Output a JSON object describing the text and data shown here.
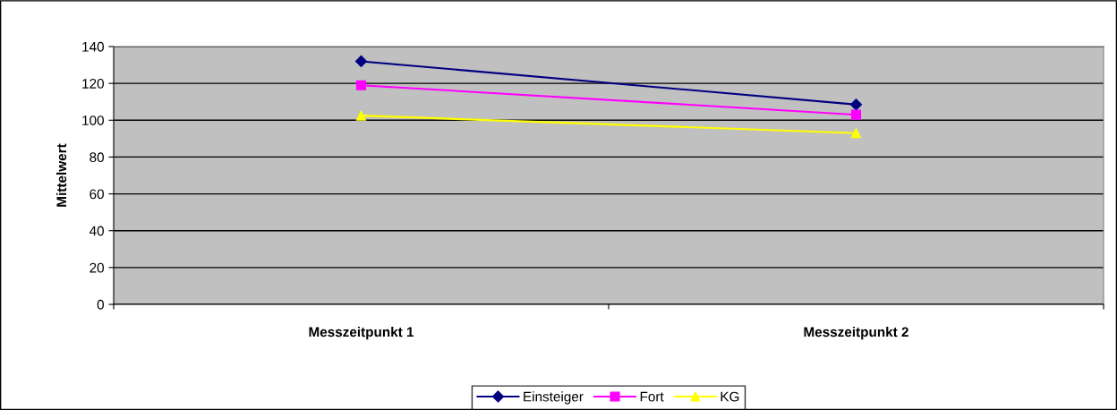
{
  "chart_data": {
    "type": "line",
    "ylabel": "Mittelwert",
    "categories": [
      "Messzeitpunkt 1",
      "Messzeitpunkt 2"
    ],
    "series": [
      {
        "name": "Einsteiger",
        "color": "#000080",
        "values": [
          132,
          108.5
        ],
        "marker": "diamond"
      },
      {
        "name": "Fort",
        "color": "#ff00ff",
        "values": [
          119,
          103
        ],
        "marker": "square"
      },
      {
        "name": "KG",
        "color": "#ffff00",
        "values": [
          102.5,
          93
        ],
        "marker": "triangle"
      }
    ],
    "ylim": [
      0,
      140
    ],
    "yticks": [
      0,
      20,
      40,
      60,
      80,
      100,
      120,
      140
    ],
    "grid": "y",
    "legend": "bottom",
    "line_style": "solid"
  }
}
